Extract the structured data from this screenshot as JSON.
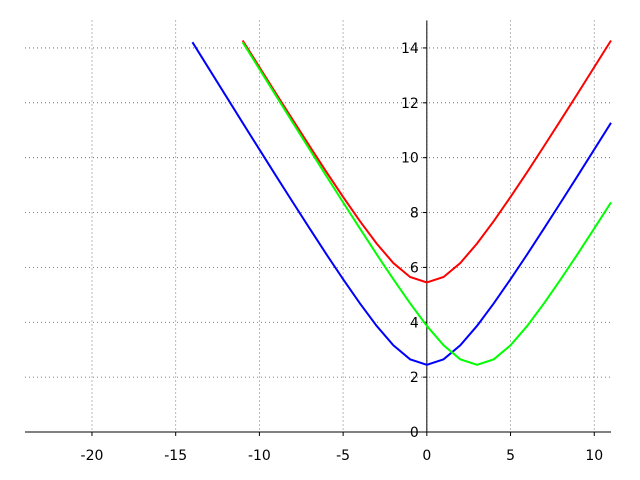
{
  "chart_data": {
    "type": "line",
    "x": [
      -14,
      -13,
      -12,
      -11,
      -10,
      -9,
      -8,
      -7,
      -6,
      -5,
      -4,
      -3,
      -2,
      -1,
      0,
      1,
      2,
      3,
      4,
      5,
      6,
      7,
      8,
      9,
      10,
      11
    ],
    "series": [
      {
        "color": "#0000ff",
        "values": [
          14.21,
          13.23,
          12.25,
          11.27,
          10.3,
          9.33,
          8.37,
          7.42,
          6.48,
          5.57,
          4.69,
          3.87,
          3.16,
          2.65,
          2.45,
          2.65,
          3.16,
          3.87,
          4.69,
          5.57,
          6.48,
          7.42,
          8.37,
          9.33,
          10.3,
          11.27
        ]
      },
      {
        "color": "#ff0000",
        "values": [
          null,
          null,
          null,
          14.27,
          13.3,
          12.33,
          11.37,
          10.42,
          9.48,
          8.57,
          7.69,
          6.87,
          6.16,
          5.65,
          5.45,
          5.65,
          6.16,
          6.87,
          7.69,
          8.57,
          9.48,
          10.42,
          11.37,
          12.33,
          13.3,
          14.27
        ]
      },
      {
        "color": "#00ff00",
        "values": [
          null,
          null,
          null,
          14.21,
          13.23,
          12.25,
          11.27,
          10.3,
          9.33,
          8.37,
          7.42,
          6.48,
          5.57,
          4.69,
          3.87,
          3.16,
          2.65,
          2.45,
          2.65,
          3.16,
          3.87,
          4.69,
          5.57,
          6.48,
          7.42,
          8.37
        ]
      }
    ],
    "xlim": [
      -24,
      11
    ],
    "ylim": [
      0,
      15
    ],
    "xticks": [
      -20,
      -15,
      -10,
      -5,
      0,
      5,
      10
    ],
    "yticks": [
      0,
      2,
      4,
      6,
      8,
      10,
      12,
      14
    ],
    "grid": true
  }
}
